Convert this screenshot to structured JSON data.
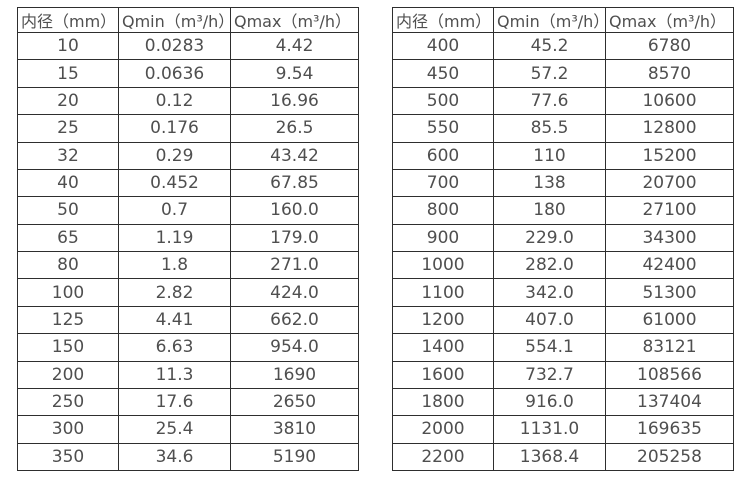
{
  "page": {
    "background_color": "#ffffff",
    "text_color": "#4f4f4f",
    "border_color": "#2e2e2e"
  },
  "tables": [
    {
      "name": "flow-spec-table-small-diameters",
      "headers": [
        "内径（mm）",
        "Qmin（m³/h）",
        "Qmax（m³/h）"
      ],
      "rows": [
        [
          "10",
          "0.0283",
          "4.42"
        ],
        [
          "15",
          "0.0636",
          "9.54"
        ],
        [
          "20",
          "0.12",
          "16.96"
        ],
        [
          "25",
          "0.176",
          "26.5"
        ],
        [
          "32",
          "0.29",
          "43.42"
        ],
        [
          "40",
          "0.452",
          "67.85"
        ],
        [
          "50",
          "0.7",
          "160.0"
        ],
        [
          "65",
          "1.19",
          "179.0"
        ],
        [
          "80",
          "1.8",
          "271.0"
        ],
        [
          "100",
          "2.82",
          "424.0"
        ],
        [
          "125",
          "4.41",
          "662.0"
        ],
        [
          "150",
          "6.63",
          "954.0"
        ],
        [
          "200",
          "11.3",
          "1690"
        ],
        [
          "250",
          "17.6",
          "2650"
        ],
        [
          "300",
          "25.4",
          "3810"
        ],
        [
          "350",
          "34.6",
          "5190"
        ]
      ]
    },
    {
      "name": "flow-spec-table-large-diameters",
      "headers": [
        "内径（mm）",
        "Qmin（m³/h）",
        "Qmax（m³/h）"
      ],
      "rows": [
        [
          "400",
          "45.2",
          "6780"
        ],
        [
          "450",
          "57.2",
          "8570"
        ],
        [
          "500",
          "77.6",
          "10600"
        ],
        [
          "550",
          "85.5",
          "12800"
        ],
        [
          "600",
          "110",
          "15200"
        ],
        [
          "700",
          "138",
          "20700"
        ],
        [
          "800",
          "180",
          "27100"
        ],
        [
          "900",
          "229.0",
          "34300"
        ],
        [
          "1000",
          "282.0",
          "42400"
        ],
        [
          "1100",
          "342.0",
          "51300"
        ],
        [
          "1200",
          "407.0",
          "61000"
        ],
        [
          "1400",
          "554.1",
          "83121"
        ],
        [
          "1600",
          "732.7",
          "108566"
        ],
        [
          "1800",
          "916.0",
          "137404"
        ],
        [
          "2000",
          "1131.0",
          "169635"
        ],
        [
          "2200",
          "1368.4",
          "205258"
        ]
      ]
    }
  ]
}
